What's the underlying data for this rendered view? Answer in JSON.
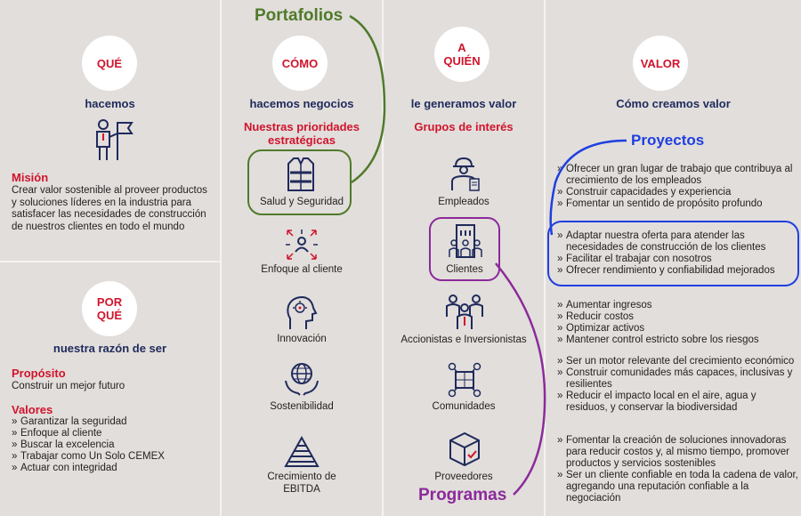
{
  "callouts": {
    "portafolios": "Portafolios",
    "proyectos": "Proyectos",
    "programas": "Programas"
  },
  "col1": {
    "circle": "QUÉ",
    "heading": "hacemos",
    "mision_title": "Misión",
    "mision_text": "Crear valor sostenible al proveer productos y soluciones líderes en la industria para satisfacer las necesidades de construcción de nuestros clientes en todo el mundo",
    "circle2_line1": "POR",
    "circle2_line2": "QUÉ",
    "heading2": "nuestra razón de ser",
    "proposito_title": "Propósito",
    "proposito_text": "Construir un mejor futuro",
    "valores_title": "Valores",
    "valores": [
      "Garantizar la seguridad",
      "Enfoque al cliente",
      "Buscar la excelencia",
      "Trabajar como Un Solo CEMEX",
      "Actuar con integridad"
    ]
  },
  "col2": {
    "circle": "CÓMO",
    "heading": "hacemos negocios",
    "subheading": "Nuestras prioridades estratégicas",
    "items": [
      "Salud y Seguridad",
      "Enfoque al cliente",
      "Innovación",
      "Sostenibilidad",
      "Crecimiento de EBITDA"
    ]
  },
  "col3": {
    "circle_line1": "A",
    "circle_line2": "QUIÉN",
    "heading": "le generamos valor",
    "subheading": "Grupos de interés",
    "items": [
      "Empleados",
      "Clientes",
      "Accionistas e Inversionistas",
      "Comunidades",
      "Proveedores"
    ]
  },
  "col4": {
    "circle": "VALOR",
    "heading": "Cómo creamos valor",
    "groups": [
      [
        "Ofrecer un gran lugar de trabajo que contribuya al crecimiento de los empleados",
        "Construir capacidades y experiencia",
        "Fomentar un sentido de propósito profundo"
      ],
      [
        "Adaptar nuestra oferta para atender las necesidades de construcción de los clientes",
        "Facilitar el trabajar con nosotros",
        "Ofrecer rendimiento y confiabilidad mejorados"
      ],
      [
        "Aumentar ingresos",
        "Reducir costos",
        "Optimizar activos",
        "Mantener control estricto sobre los riesgos"
      ],
      [
        "Ser un motor relevante del crecimiento económico",
        "Construir comunidades más capaces, inclusivas y resilientes",
        "Reducir el impacto local en el aire, agua y residuos, y conservar la biodiversidad"
      ],
      [
        "Fomentar la creación de soluciones innovadoras para reducir costos y, al mismo tiempo, promover productos y servicios sostenibles",
        "Ser un cliente confiable en toda la cadena de valor, agregando una reputación confiable a la negociación"
      ]
    ]
  },
  "colors": {
    "green": "#4f7a2a",
    "blue": "#1f3fe0",
    "purple": "#8b2a9b",
    "red": "#d0142c",
    "navy": "#1f2a5c"
  }
}
